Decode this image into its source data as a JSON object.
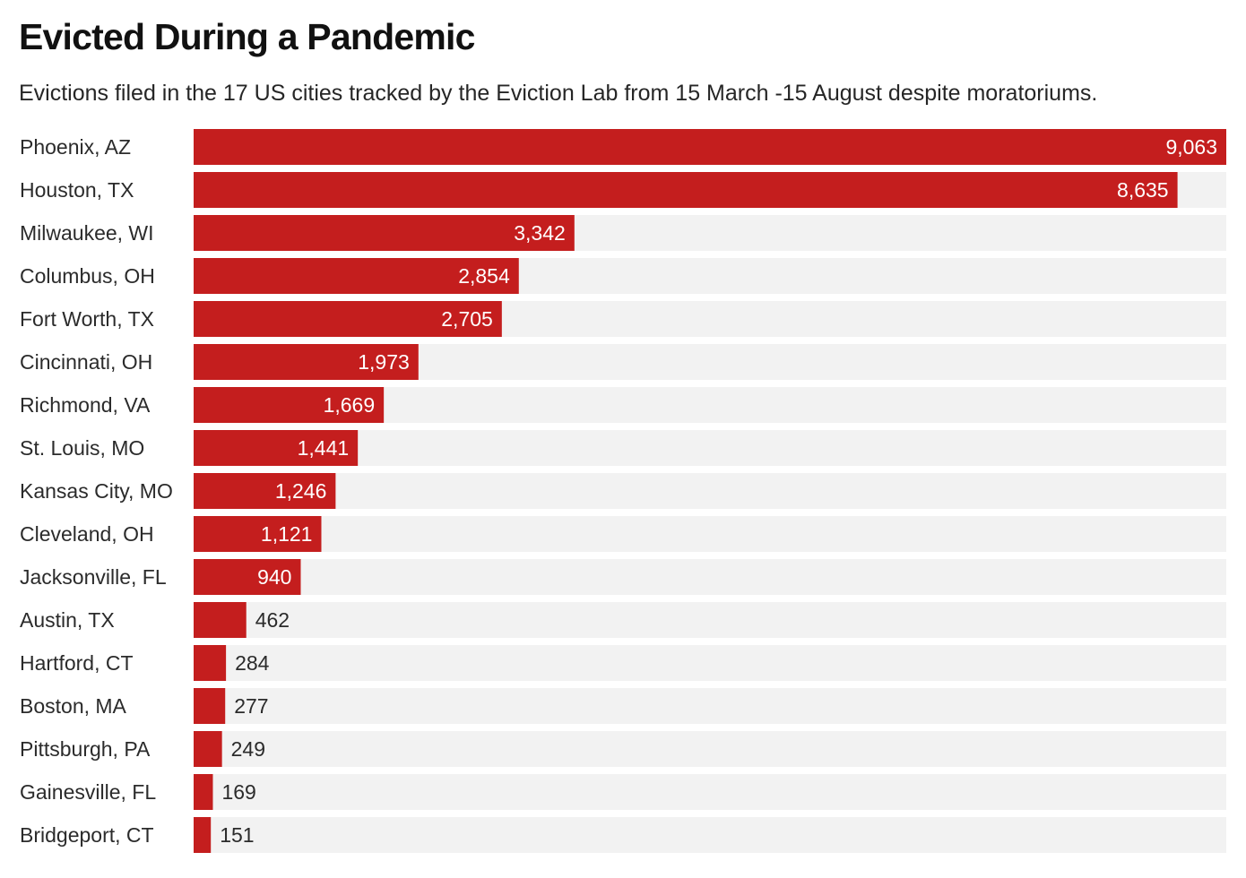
{
  "chart_data": {
    "type": "bar",
    "orientation": "horizontal",
    "title": "Evicted During a Pandemic",
    "subtitle": "Evictions filed in the 17 US cities tracked by the Eviction Lab from 15 March -15 August despite moratoriums.",
    "categories": [
      "Phoenix, AZ",
      "Houston, TX",
      "Milwaukee, WI",
      "Columbus, OH",
      "Fort Worth, TX",
      "Cincinnati, OH",
      "Richmond, VA",
      "St. Louis, MO",
      "Kansas City, MO",
      "Cleveland, OH",
      "Jacksonville, FL",
      "Austin, TX",
      "Hartford, CT",
      "Boston, MA",
      "Pittsburgh, PA",
      "Gainesville, FL",
      "Bridgeport, CT"
    ],
    "values": [
      9063,
      8635,
      3342,
      2854,
      2705,
      1973,
      1669,
      1441,
      1246,
      1121,
      940,
      462,
      284,
      277,
      249,
      169,
      151
    ],
    "value_labels": [
      "9,063",
      "8,635",
      "3,342",
      "2,854",
      "2,705",
      "1,973",
      "1,669",
      "1,441",
      "1,246",
      "1,121",
      "940",
      "462",
      "284",
      "277",
      "249",
      "169",
      "151"
    ],
    "xlim": [
      0,
      9063
    ],
    "bar_color": "#c41e1e",
    "track_color": "#f2f2f2",
    "grid": false
  }
}
